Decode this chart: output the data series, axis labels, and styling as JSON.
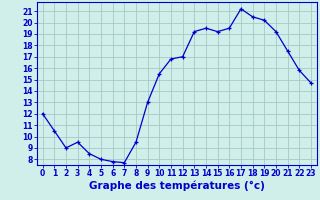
{
  "hours": [
    0,
    1,
    2,
    3,
    4,
    5,
    6,
    7,
    8,
    9,
    10,
    11,
    12,
    13,
    14,
    15,
    16,
    17,
    18,
    19,
    20,
    21,
    22,
    23
  ],
  "temps": [
    12,
    10.5,
    9,
    9.5,
    8.5,
    8,
    7.8,
    7.7,
    9.5,
    13,
    15.5,
    16.8,
    17,
    19.2,
    19.5,
    19.2,
    19.5,
    21.2,
    20.5,
    20.2,
    19.2,
    17.5,
    15.8,
    14.7
  ],
  "line_color": "#0000cc",
  "marker": "+",
  "marker_size": 3,
  "bg_color": "#d0eeea",
  "grid_color": "#a8c8c4",
  "xlabel": "Graphe des températures (°c)",
  "xlabel_color": "#0000cc",
  "ylabel_ticks": [
    8,
    9,
    10,
    11,
    12,
    13,
    14,
    15,
    16,
    17,
    18,
    19,
    20,
    21
  ],
  "xlim": [
    -0.5,
    23.5
  ],
  "ylim": [
    7.5,
    21.8
  ],
  "tick_fontsize": 5.5,
  "xlabel_fontsize": 7.5,
  "linewidth": 0.9
}
